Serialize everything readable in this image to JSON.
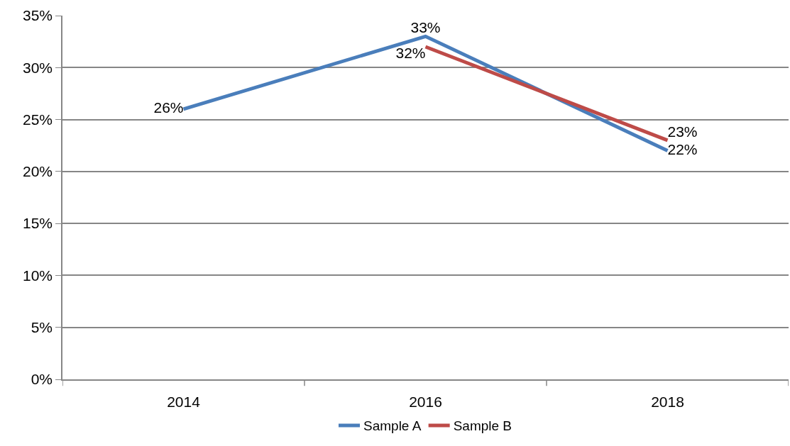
{
  "chart_data": {
    "type": "line",
    "categories": [
      "2014",
      "2016",
      "2018"
    ],
    "series": [
      {
        "name": "Sample A",
        "color": "#4a7ebb",
        "values": [
          26,
          33,
          22
        ],
        "value_labels": [
          "26%",
          "33%",
          "22%"
        ]
      },
      {
        "name": "Sample B",
        "color": "#be4b48",
        "values": [
          null,
          32,
          23
        ],
        "value_labels": [
          null,
          "32%",
          "23%"
        ]
      }
    ],
    "ylim": [
      0,
      35
    ],
    "yticks": [
      {
        "value": 0,
        "label": "0%"
      },
      {
        "value": 5,
        "label": "5%"
      },
      {
        "value": 10,
        "label": "10%"
      },
      {
        "value": 15,
        "label": "15%"
      },
      {
        "value": 20,
        "label": "20%"
      },
      {
        "value": 25,
        "label": "25%"
      },
      {
        "value": 30,
        "label": "30%"
      },
      {
        "value": 35,
        "label": "35%"
      }
    ],
    "grid": "y",
    "legend": "bottom",
    "line_style": "solid"
  }
}
